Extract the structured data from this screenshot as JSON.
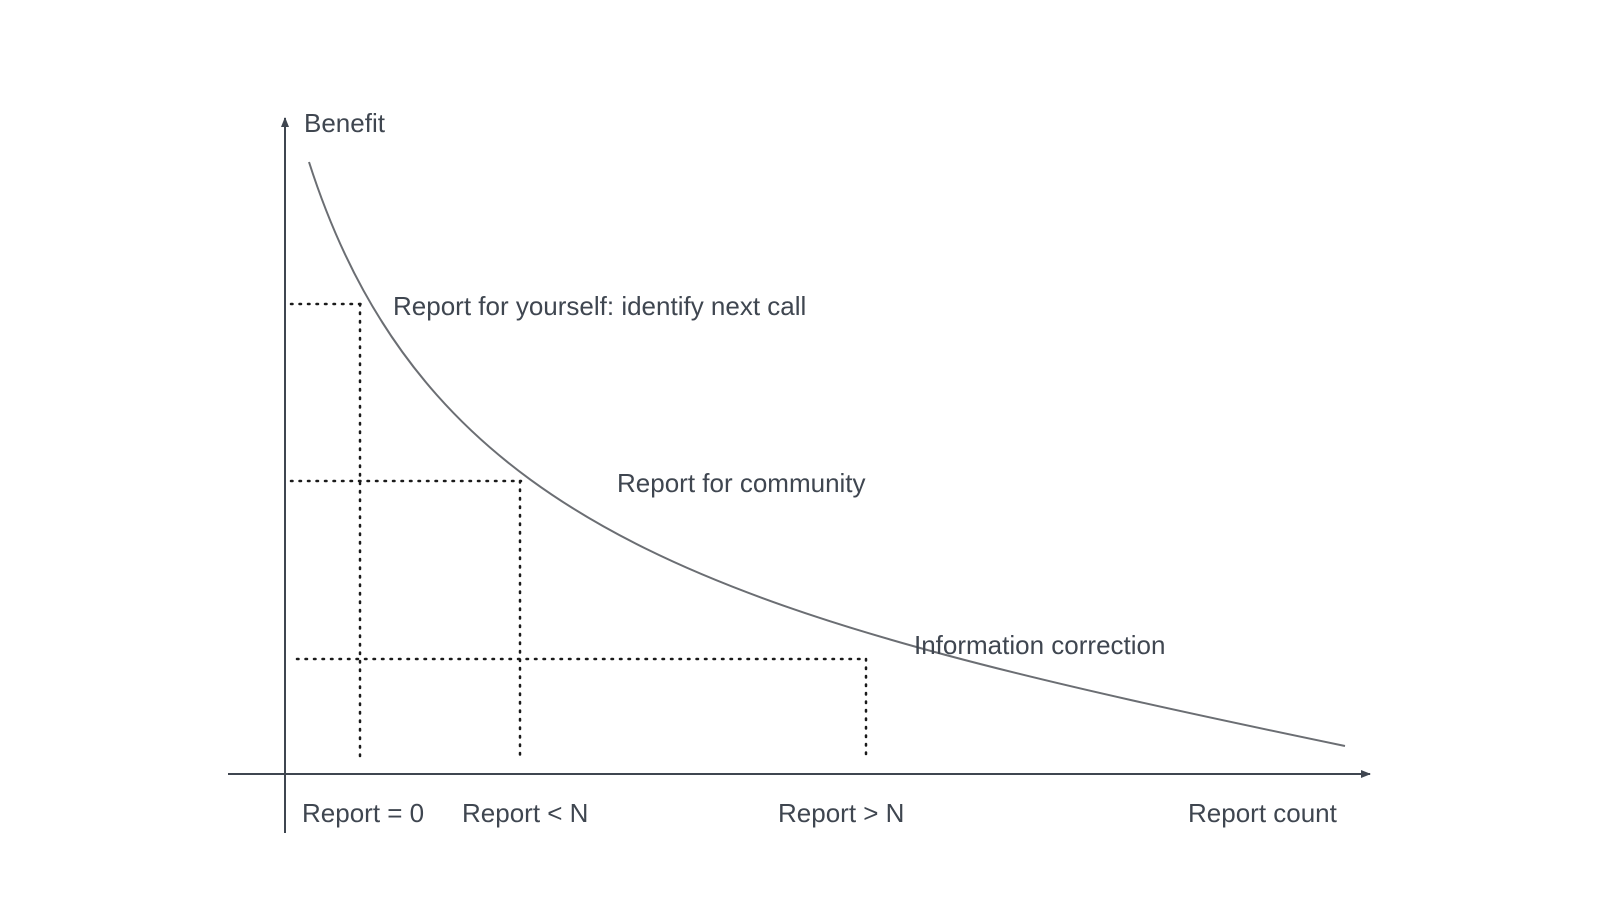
{
  "diagram": {
    "y_axis_label": "Benefit",
    "x_axis_label": "Report count",
    "x_ticks": [
      "Report = 0",
      "Report < N",
      "Report > N"
    ],
    "stages": [
      "Report for yourself: identify next call",
      "Report for community",
      "Information correction"
    ],
    "colors": {
      "axis": "#3f4650",
      "curve": "#6b6e73",
      "guides": "#1a1a1a",
      "text": "#3f4650"
    }
  }
}
